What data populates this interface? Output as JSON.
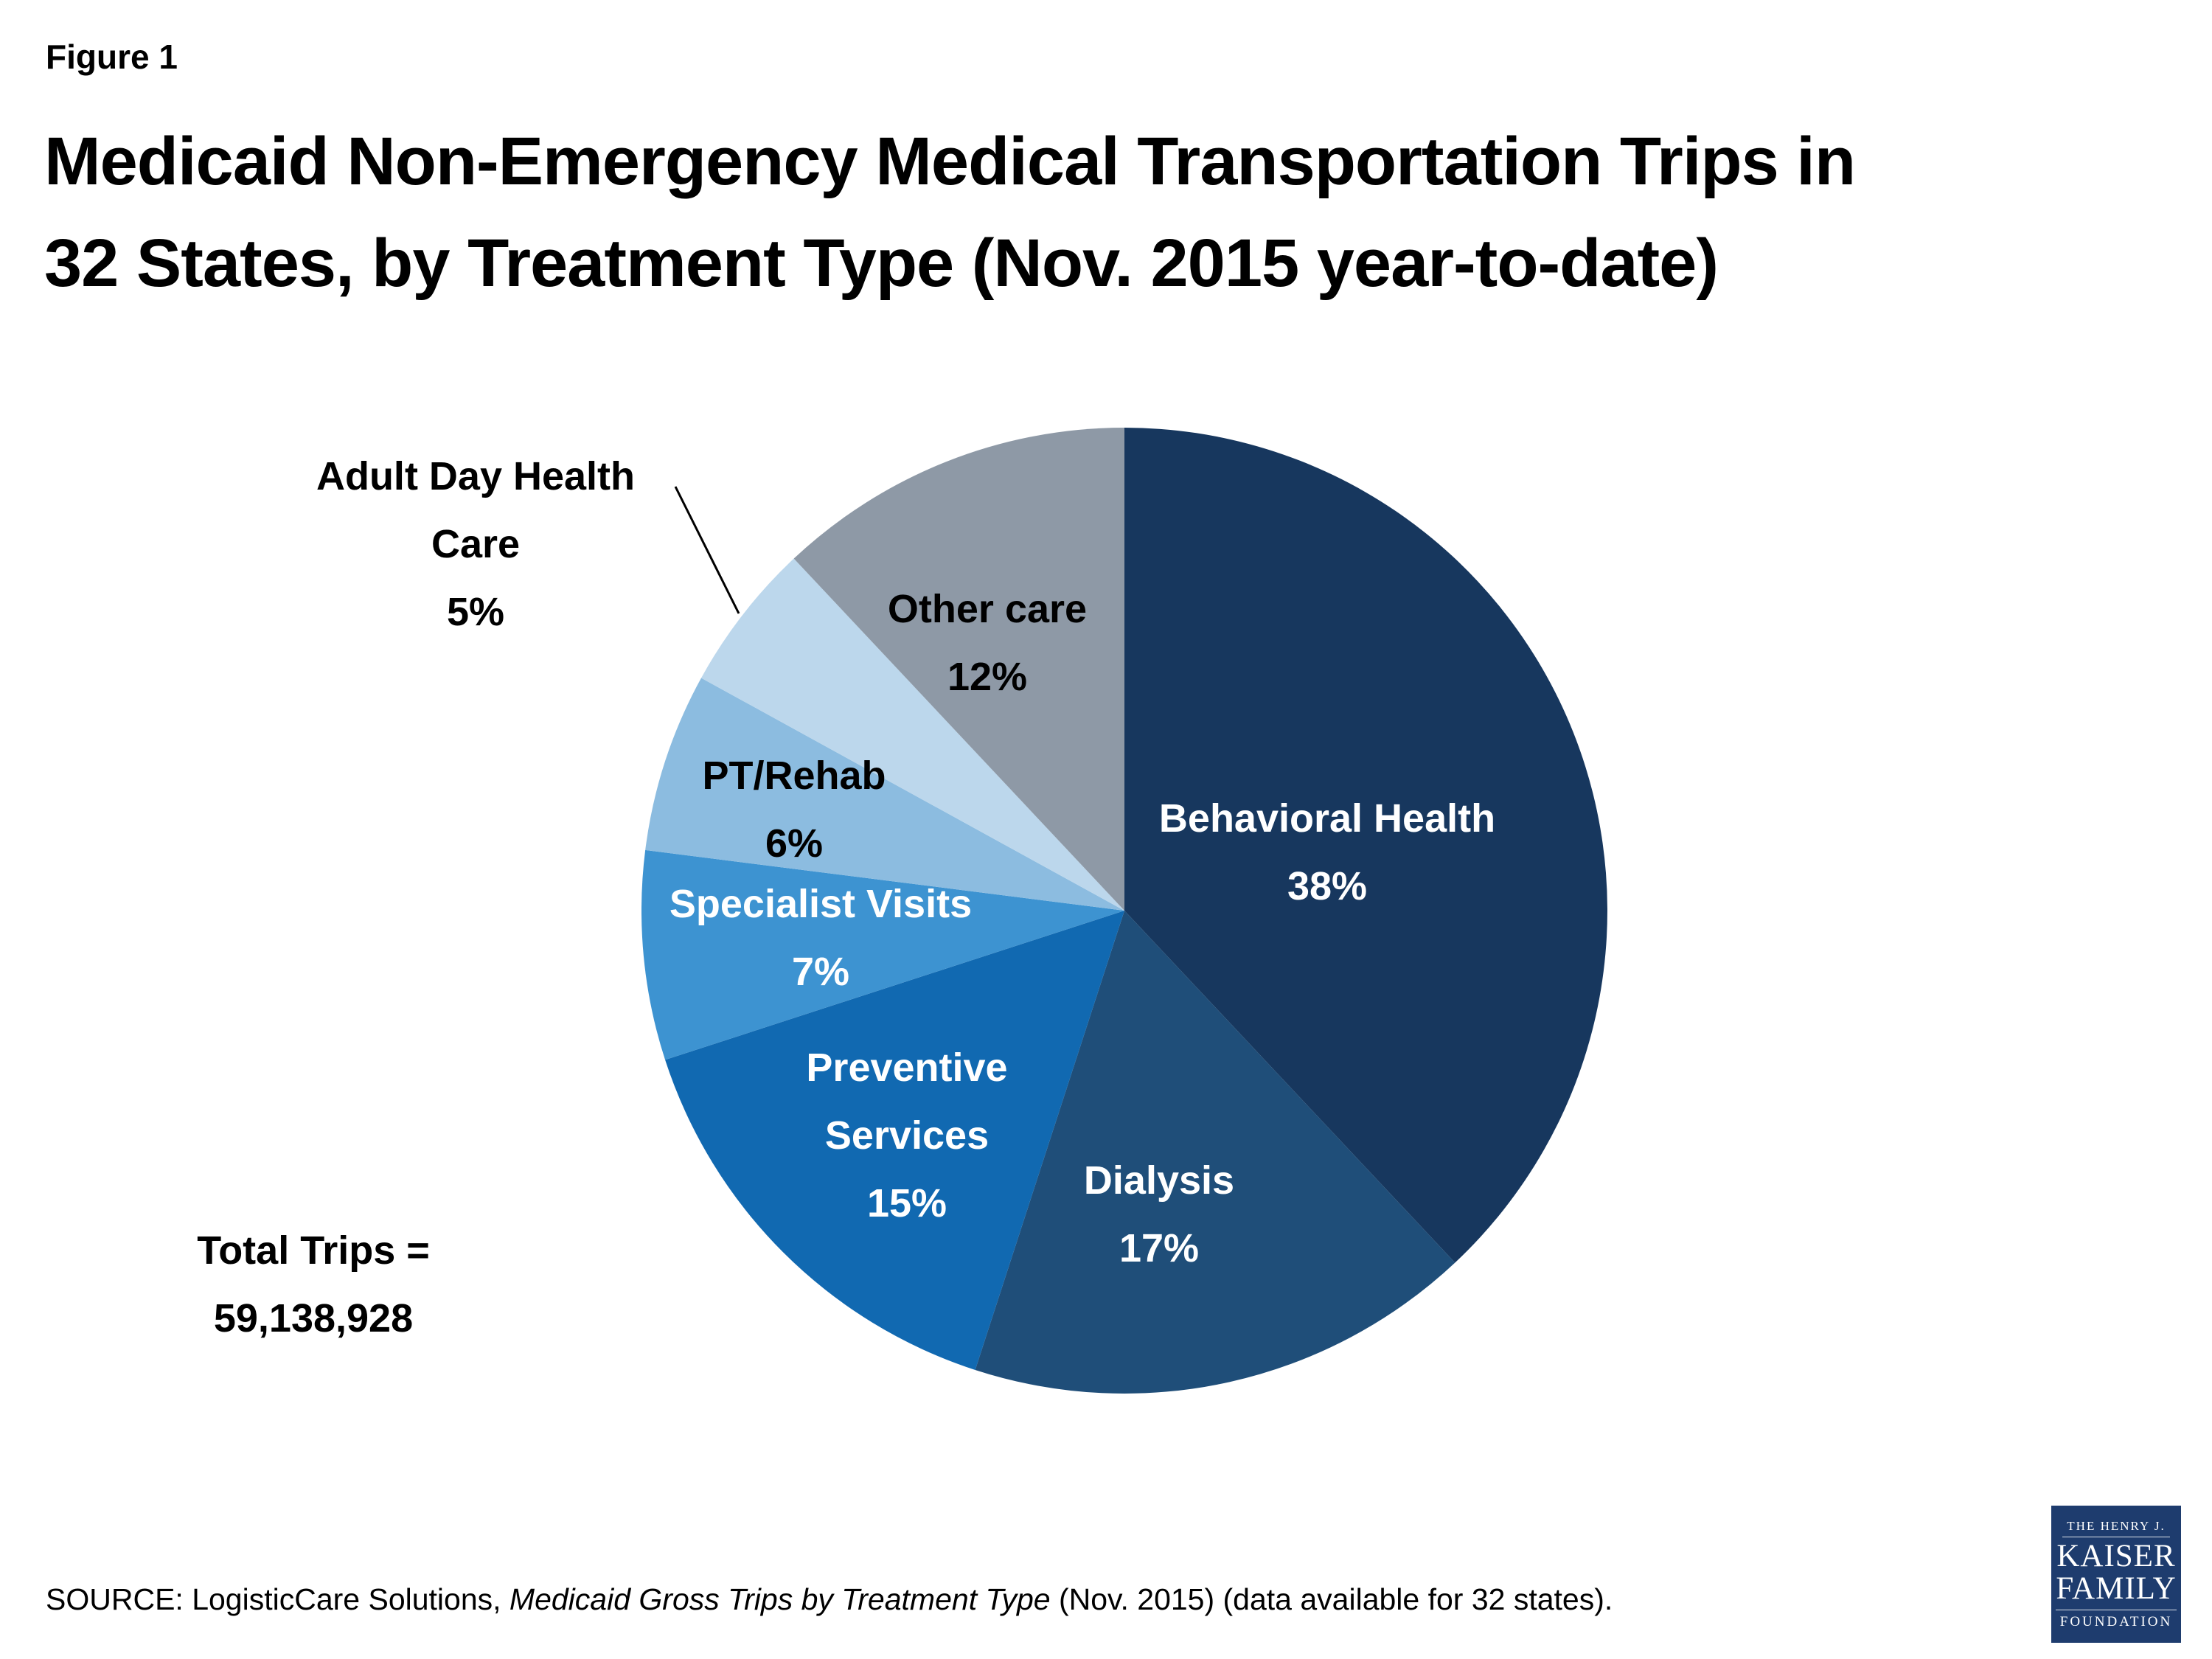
{
  "figure_label": "Figure 1",
  "title": {
    "line1": "Medicaid Non-Emergency Medical Transportation Trips in",
    "line2": "32 States, by Treatment Type (Nov. 2015 year-to-date)"
  },
  "total": {
    "line1": "Total Trips =",
    "line2": "59,138,928"
  },
  "source": {
    "prefix": "SOURCE: LogisticCare Solutions, ",
    "italic": "Medicaid Gross Trips by Treatment Type",
    "suffix": " (Nov. 2015) (data available for 32 states)."
  },
  "logo": {
    "line1": "THE HENRY J.",
    "line2": "KAISER",
    "line3": "FAMILY",
    "line4": "FOUNDATION",
    "bg_color": "#1e3c6e"
  },
  "chart_data": {
    "type": "pie",
    "title": "Medicaid Non-Emergency Medical Transportation Trips in 32 States, by Treatment Type (Nov. 2015 year-to-date)",
    "total_trips": 59138928,
    "units": "percent of trips",
    "start_angle_deg": 0,
    "direction": "clockwise",
    "slices": [
      {
        "label": "Behavioral Health",
        "pct": 38,
        "pct_label": "38%",
        "label_lines": [
          "Behavioral Health"
        ],
        "color": "#17375e",
        "text_color": "#ffffff"
      },
      {
        "label": "Dialysis",
        "pct": 17,
        "pct_label": "17%",
        "label_lines": [
          "Dialysis"
        ],
        "color": "#1f4e79",
        "text_color": "#ffffff"
      },
      {
        "label": "Preventive Services",
        "pct": 15,
        "pct_label": "15%",
        "label_lines": [
          "Preventive",
          "Services"
        ],
        "color": "#1169b1",
        "text_color": "#ffffff"
      },
      {
        "label": "Specialist Visits",
        "pct": 7,
        "pct_label": "7%",
        "label_lines": [
          "Specialist Visits"
        ],
        "color": "#3d93d1",
        "text_color": "#ffffff"
      },
      {
        "label": "PT/Rehab",
        "pct": 6,
        "pct_label": "6%",
        "label_lines": [
          "PT/Rehab"
        ],
        "color": "#8cbce0",
        "text_color": "#000000"
      },
      {
        "label": "Adult Day Health Care",
        "pct": 5,
        "pct_label": "5%",
        "label_lines": [
          "Adult Day Health",
          "Care"
        ],
        "color": "#bcd7ec",
        "text_color": "#000000"
      },
      {
        "label": "Other care",
        "pct": 12,
        "pct_label": "12%",
        "label_lines": [
          "Other care"
        ],
        "color": "#8e99a6",
        "text_color": "#000000"
      }
    ]
  }
}
